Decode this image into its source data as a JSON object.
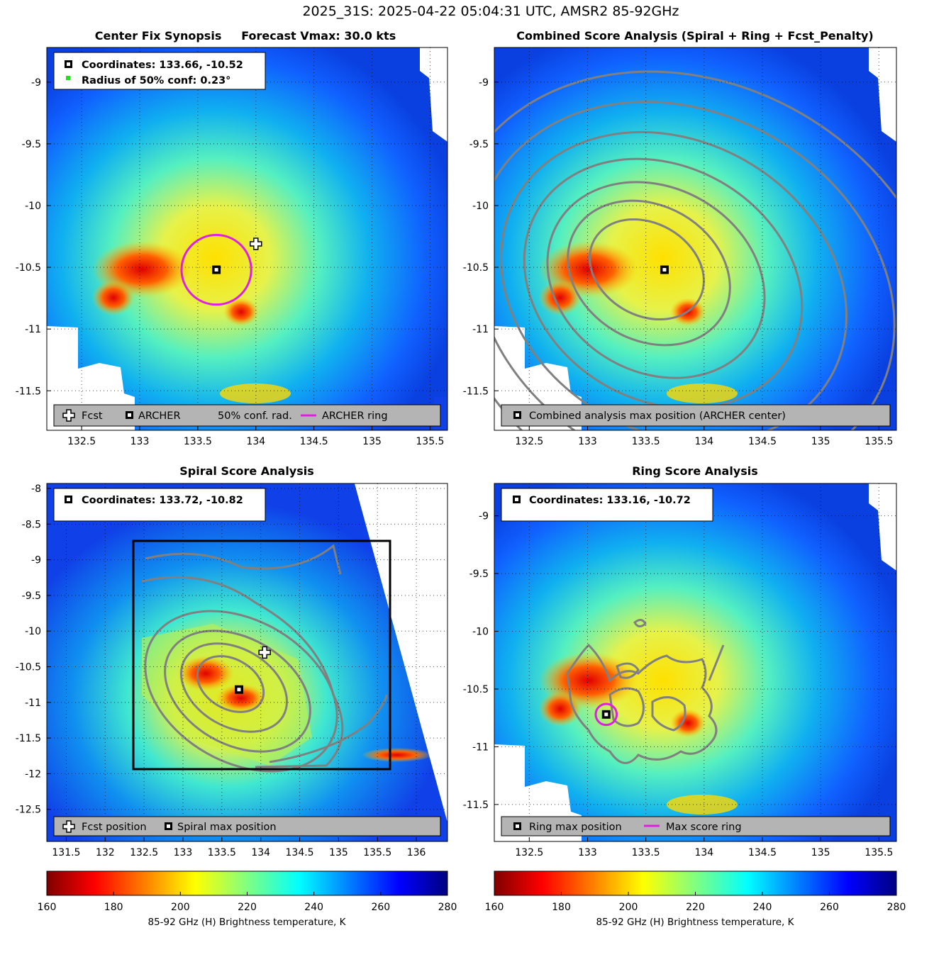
{
  "figure_title": "2025_31S: 2025-04-22 05:04:31 UTC, AMSR2 85-92GHz",
  "colors": {
    "ring": "#e020e0",
    "contour": "#808080",
    "legend_bg": "#b4b4b4",
    "conf_dot": "#19e619",
    "box": "#000000"
  },
  "chart_data": [
    {
      "id": "synopsis",
      "type": "heatmap",
      "title": "Center Fix Synopsis     Forecast Vmax: 30.0 kts",
      "x_ticks": [
        "132.5",
        "133",
        "133.5",
        "134",
        "134.5",
        "135",
        "135.5"
      ],
      "x_tick_values": [
        132.5,
        133,
        133.5,
        134,
        134.5,
        135,
        135.5
      ],
      "y_ticks": [
        "-9",
        "-9.5",
        "-10",
        "-10.5",
        "-11",
        "-11.5"
      ],
      "y_tick_values": [
        -9,
        -9.5,
        -10,
        -10.5,
        -11,
        -11.5
      ],
      "xlim": [
        132.2,
        135.65
      ],
      "ylim": [
        -11.82,
        -8.72
      ],
      "info_box": [
        "Coordinates: 133.66, -10.52",
        "Radius of 50% conf: 0.23°"
      ],
      "legend": [
        "Fcst",
        "ARCHER",
        "50% conf. rad.",
        "ARCHER ring"
      ],
      "archer_center": [
        133.66,
        -10.52
      ],
      "forecast_position": [
        134.0,
        -10.31
      ],
      "ring_radius_deg": 0.3
    },
    {
      "id": "combined",
      "type": "heatmap",
      "title": "Combined Score Analysis (Spiral + Ring + Fcst_Penalty)",
      "x_ticks": [
        "132.5",
        "133",
        "133.5",
        "134",
        "134.5",
        "135",
        "135.5"
      ],
      "x_tick_values": [
        132.5,
        133,
        133.5,
        134,
        134.5,
        135,
        135.5
      ],
      "y_ticks": [
        "-9",
        "-9.5",
        "-10",
        "-10.5",
        "-11",
        "-11.5"
      ],
      "y_tick_values": [
        -9,
        -9.5,
        -10,
        -10.5,
        -11,
        -11.5
      ],
      "xlim": [
        132.2,
        135.65
      ],
      "ylim": [
        -11.82,
        -8.72
      ],
      "legend": [
        "Combined analysis max position (ARCHER center)"
      ],
      "max_position": [
        133.66,
        -10.52
      ]
    },
    {
      "id": "spiral",
      "type": "heatmap",
      "title": "Spiral Score Analysis",
      "x_ticks": [
        "131.5",
        "132",
        "132.5",
        "133",
        "133.5",
        "134",
        "134.5",
        "135",
        "135.5",
        "136"
      ],
      "x_tick_values": [
        131.5,
        132,
        132.5,
        133,
        133.5,
        134,
        134.5,
        135,
        135.5,
        136
      ],
      "y_ticks": [
        "-8",
        "-8.5",
        "-9",
        "-9.5",
        "-10",
        "-10.5",
        "-11",
        "-11.5",
        "-12",
        "-12.5"
      ],
      "y_tick_values": [
        -8,
        -8.5,
        -9,
        -9.5,
        -10,
        -10.5,
        -11,
        -11.5,
        -12,
        -12.5
      ],
      "xlim": [
        131.25,
        136.4
      ],
      "ylim": [
        -12.95,
        -7.93
      ],
      "info_box": [
        "Coordinates: 133.72, -10.82"
      ],
      "legend": [
        "Fcst position",
        "Spiral max position"
      ],
      "max_position": [
        133.72,
        -10.82
      ],
      "forecast_position": [
        134.05,
        -10.3
      ],
      "search_box": [
        132.45,
        -11.9,
        135.75,
        -8.7
      ]
    },
    {
      "id": "ring",
      "type": "heatmap",
      "title": "Ring Score Analysis",
      "x_ticks": [
        "132.5",
        "133",
        "133.5",
        "134",
        "134.5",
        "135",
        "135.5"
      ],
      "x_tick_values": [
        132.5,
        133,
        133.5,
        134,
        134.5,
        135,
        135.5
      ],
      "y_ticks": [
        "-9",
        "-9.5",
        "-10",
        "-10.5",
        "-11",
        "-11.5"
      ],
      "y_tick_values": [
        -9,
        -9.5,
        -10,
        -10.5,
        -11,
        -11.5
      ],
      "xlim": [
        132.2,
        135.65
      ],
      "ylim": [
        -11.82,
        -8.72
      ],
      "info_box": [
        "Coordinates: 133.16, -10.72"
      ],
      "legend": [
        "Ring max position",
        "Max score ring"
      ],
      "max_position": [
        133.16,
        -10.72
      ],
      "ring_radius_deg": 0.09
    }
  ],
  "colorbars": [
    {
      "id": "cb-left",
      "ticks": [
        "160",
        "180",
        "200",
        "220",
        "240",
        "260",
        "280"
      ],
      "range": [
        160,
        280
      ],
      "label": "85-92 GHz (H) Brightness temperature, K"
    },
    {
      "id": "cb-right",
      "ticks": [
        "160",
        "180",
        "200",
        "220",
        "240",
        "260",
        "280"
      ],
      "range": [
        160,
        280
      ],
      "label": "85-92 GHz (H) Brightness temperature, K"
    }
  ]
}
